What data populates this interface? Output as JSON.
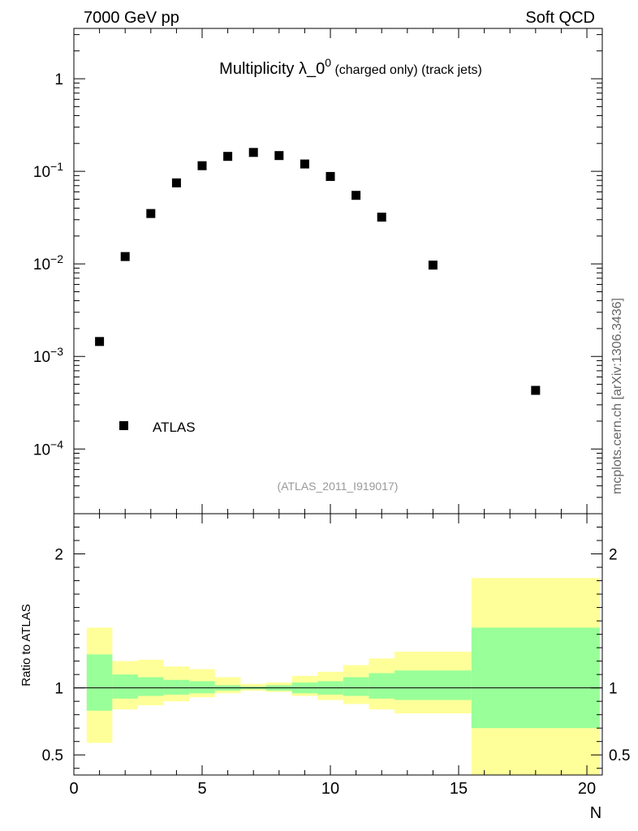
{
  "header": {
    "left": "7000 GeV pp",
    "right": "Soft QCD"
  },
  "title": {
    "main": "Multiplicity λ_0",
    "superscript": "0",
    "suffix": " (charged only) (track jets)"
  },
  "analysis_id": "(ATLAS_2011_I919017)",
  "side_label": "mcplots.cern.ch [arXiv:1306.3436]",
  "legend": {
    "label": "ATLAS",
    "placement": "bottom-left"
  },
  "ratio_ylabel": "Ratio to ATLAS",
  "xlabel": "N",
  "chart_data": [
    {
      "type": "scatter",
      "panel": "main",
      "yscale": "log",
      "xlim": [
        0,
        20.6
      ],
      "ylim": [
        2e-05,
        3.5
      ],
      "y_ticks": [
        {
          "value": 1,
          "mantissa": "1",
          "exponent": ""
        },
        {
          "value": 0.1,
          "mantissa": "10",
          "exponent": "−1"
        },
        {
          "value": 0.01,
          "mantissa": "10",
          "exponent": "−2"
        },
        {
          "value": 0.001,
          "mantissa": "10",
          "exponent": "−3"
        },
        {
          "value": 0.0001,
          "mantissa": "10",
          "exponent": "−4"
        }
      ],
      "series": [
        {
          "name": "ATLAS",
          "x": [
            1,
            2,
            3,
            4,
            5,
            6,
            7,
            8,
            9,
            10,
            11,
            12,
            14,
            18
          ],
          "y": [
            0.00145,
            0.012,
            0.035,
            0.075,
            0.115,
            0.145,
            0.16,
            0.148,
            0.12,
            0.088,
            0.055,
            0.032,
            0.0097,
            0.00043
          ]
        }
      ]
    },
    {
      "type": "area",
      "panel": "ratio",
      "xlim": [
        0,
        20.6
      ],
      "ylim": [
        0.35,
        2.3
      ],
      "x_ticks": [
        0,
        5,
        10,
        15,
        20
      ],
      "y_ticks": [
        0.5,
        1,
        2
      ],
      "reference_line": 1,
      "bins": [
        {
          "x0": 0.5,
          "x1": 1.5,
          "inner": [
            0.83,
            1.25
          ],
          "outer": [
            0.59,
            1.45
          ]
        },
        {
          "x0": 1.5,
          "x1": 2.5,
          "inner": [
            0.92,
            1.1
          ],
          "outer": [
            0.84,
            1.2
          ]
        },
        {
          "x0": 2.5,
          "x1": 3.5,
          "inner": [
            0.94,
            1.08
          ],
          "outer": [
            0.87,
            1.21
          ]
        },
        {
          "x0": 3.5,
          "x1": 4.5,
          "inner": [
            0.95,
            1.06
          ],
          "outer": [
            0.9,
            1.16
          ]
        },
        {
          "x0": 4.5,
          "x1": 5.5,
          "inner": [
            0.96,
            1.05
          ],
          "outer": [
            0.93,
            1.14
          ]
        },
        {
          "x0": 5.5,
          "x1": 6.5,
          "inner": [
            0.98,
            1.02
          ],
          "outer": [
            0.96,
            1.08
          ]
        },
        {
          "x0": 6.5,
          "x1": 7.5,
          "inner": [
            0.99,
            1.01
          ],
          "outer": [
            0.98,
            1.03
          ]
        },
        {
          "x0": 7.5,
          "x1": 8.5,
          "inner": [
            0.98,
            1.02
          ],
          "outer": [
            0.97,
            1.04
          ]
        },
        {
          "x0": 8.5,
          "x1": 9.5,
          "inner": [
            0.96,
            1.04
          ],
          "outer": [
            0.94,
            1.09
          ]
        },
        {
          "x0": 9.5,
          "x1": 10.5,
          "inner": [
            0.95,
            1.05
          ],
          "outer": [
            0.91,
            1.12
          ]
        },
        {
          "x0": 10.5,
          "x1": 11.5,
          "inner": [
            0.94,
            1.08
          ],
          "outer": [
            0.88,
            1.17
          ]
        },
        {
          "x0": 11.5,
          "x1": 12.5,
          "inner": [
            0.92,
            1.11
          ],
          "outer": [
            0.84,
            1.22
          ]
        },
        {
          "x0": 12.5,
          "x1": 15.5,
          "inner": [
            0.91,
            1.13
          ],
          "outer": [
            0.81,
            1.27
          ]
        },
        {
          "x0": 15.5,
          "x1": 20.5,
          "inner": [
            0.7,
            1.45
          ],
          "outer": [
            0.3,
            1.82
          ]
        }
      ]
    }
  ]
}
